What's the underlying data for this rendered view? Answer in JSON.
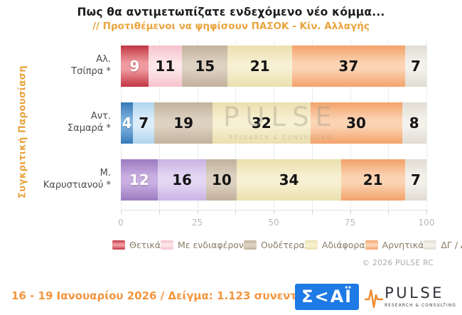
{
  "header": {
    "title": "Πως θα αντιμετωπίζατε ενδεχόμενο νέο κόμμα...",
    "subtitle": "// Προτιθέμενοι να ψηφίσουν ΠΑΣΟΚ - Κίν. Αλλαγής"
  },
  "side_label": "Συγκριτική Παρουσίαση",
  "watermark": {
    "line1": "PULSE",
    "line2": "RESEARCH & CONSULTING"
  },
  "copyright": "© 2026 PULSE RC",
  "footer": {
    "text": "16 - 19 Ιανουαρίου 2026  /  Δείγμα:  1.123 συνεντεύξεις",
    "skai_text": "Σ<ΑΪ",
    "pulse_text": "PULSE",
    "pulse_subtext": "RESEARCH & CONSULTING"
  },
  "chart_data": {
    "type": "bar",
    "orientation": "horizontal-stacked",
    "title": "Πως θα αντιμετωπίζατε ενδεχόμενο νέο κόμμα...",
    "subtitle": "// Προτιθέμενοι να ψηφίσουν ΠΑΣΟΚ - Κίν. Αλλαγής",
    "xlim": [
      0,
      100
    ],
    "xticks": [
      0,
      25,
      50,
      75,
      100
    ],
    "minor_step": 12.5,
    "grid": true,
    "legend_position": "bottom",
    "categories": [
      "Αλ. Τσίπρα *",
      "Αντ. Σαμαρά *",
      "Μ. Καρυστιανού *"
    ],
    "legend": [
      {
        "label": "Θετικά",
        "color": "thetika_red"
      },
      {
        "label": "Με ενδιαφέρον",
        "color": "endiaferon_pink"
      },
      {
        "label": "Ουδέτερα",
        "color": "oudetera_tan"
      },
      {
        "label": "Αδιάφορα",
        "color": "adiafora_cream"
      },
      {
        "label": "Αρνητικά",
        "color": "arnitika_orange"
      },
      {
        "label": "ΔΓ / ΔΑ",
        "color": "dgda_gray"
      }
    ],
    "rows": [
      {
        "label_lines": [
          "Αλ.",
          "Τσίπρα *"
        ],
        "values": [
          9,
          11,
          15,
          21,
          37,
          7
        ],
        "palette": [
          "thetika_red",
          "endiaferon_pink",
          "oudetera_tan",
          "adiafora_cream",
          "arnitika_orange",
          "dgda_gray"
        ]
      },
      {
        "label_lines": [
          "Αντ.",
          "Σαμαρά *"
        ],
        "values": [
          4,
          7,
          19,
          32,
          30,
          8
        ],
        "palette": [
          "samaras_blue",
          "samaras_lightblue",
          "oudetera_tan",
          "adiafora_cream",
          "arnitika_orange",
          "dgda_gray"
        ]
      },
      {
        "label_lines": [
          "Μ.",
          "Καρυστιανού *"
        ],
        "values": [
          12,
          16,
          10,
          34,
          21,
          7
        ],
        "palette": [
          "karystianou_purple",
          "karystianou_lightpurple",
          "oudetera_tan",
          "adiafora_cream",
          "arnitika_orange",
          "dgda_gray"
        ]
      }
    ],
    "colors": {
      "thetika_red": {
        "edge": "#c23642",
        "light": "#ef9aa0",
        "text": "#ffffff"
      },
      "endiaferon_pink": {
        "edge": "#f5c3cc",
        "light": "#fde6ea",
        "text": "#141414"
      },
      "oudetera_tan": {
        "edge": "#c2b19c",
        "light": "#ddd1c1",
        "text": "#141414"
      },
      "adiafora_cream": {
        "edge": "#eadfae",
        "light": "#f7f0d2",
        "text": "#141414"
      },
      "arnitika_orange": {
        "edge": "#f3a269",
        "light": "#fbd4b4",
        "text": "#141414"
      },
      "dgda_gray": {
        "edge": "#e0dcd2",
        "light": "#f4f1eb",
        "text": "#141414"
      },
      "samaras_blue": {
        "edge": "#3579b8",
        "light": "#7fb3dd",
        "text": "#ffffff"
      },
      "samaras_lightblue": {
        "edge": "#b0d5ee",
        "light": "#dcedf9",
        "text": "#141414"
      },
      "karystianou_purple": {
        "edge": "#9c7bc0",
        "light": "#c9afe2",
        "text": "#ffffff"
      },
      "karystianou_lightpurple": {
        "edge": "#cab3e4",
        "light": "#e4d7f3",
        "text": "#141414"
      }
    }
  }
}
